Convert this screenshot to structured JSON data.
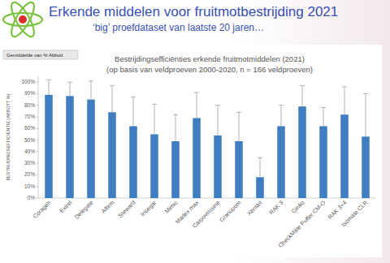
{
  "header": {
    "title": "Erkende middelen voor fruitmotbestrijding 2021",
    "subtitle": "‘big’ proefdataset van laatste 20 jaren…",
    "field_button": "Gemiddelde van % Abbott"
  },
  "chart_data": {
    "type": "bar",
    "title": "Bestrijdingsefficiënties erkende fruitmotmiddelen (2021)",
    "subtitle": "(op basis van veldproeven 2000-2020, n = 166 veldproeven)",
    "y_label": "BESTRIJDINGSEFFICIËNTIE (ABBOTT %)",
    "categories": [
      "Coragen",
      "Exirel",
      "Delegate",
      "Affirm",
      "Steward",
      "Insegar",
      "Mimic",
      "Madex max",
      "Carpovirusine",
      "Granupom",
      "Xentari",
      "RAK 3",
      "Ginko",
      "CheckMate Puffer CM-O",
      "RAK 3+4",
      "Isomate CLR"
    ],
    "values": [
      89,
      88,
      85,
      74,
      62,
      55,
      49,
      69,
      54,
      49,
      18,
      62,
      79,
      62,
      72,
      53
    ],
    "errors": [
      13,
      12,
      16,
      23,
      25,
      26,
      23,
      22,
      26,
      25,
      17,
      18,
      18,
      16,
      24,
      37
    ],
    "color": "#3f7dc1",
    "ylim": [
      0,
      105
    ],
    "yticks": [
      {
        "value": 0,
        "label": "0%"
      },
      {
        "value": 10,
        "label": "10%"
      },
      {
        "value": 20,
        "label": "20%"
      },
      {
        "value": 30,
        "label": "30%"
      },
      {
        "value": 40,
        "label": "40%"
      },
      {
        "value": 50,
        "label": "50%"
      },
      {
        "value": 60,
        "label": "60%"
      },
      {
        "value": 70,
        "label": "70%"
      },
      {
        "value": 80,
        "label": "80%"
      },
      {
        "value": 90,
        "label": "90%"
      },
      {
        "value": 100,
        "label": "100%"
      }
    ],
    "grid": false
  }
}
